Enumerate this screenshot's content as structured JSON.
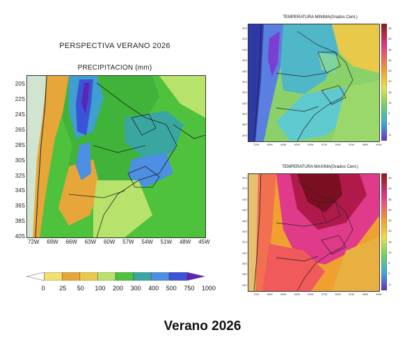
{
  "main_map": {
    "title": "PERSPECTIVA VERANO 2026",
    "subtitle": "PRECIPITACION (mm)",
    "y_labels": [
      "20S",
      "22S",
      "24S",
      "26S",
      "28S",
      "30S",
      "32S",
      "34S",
      "36S",
      "38S",
      "40S"
    ],
    "x_labels": [
      "72W",
      "69W",
      "66W",
      "63W",
      "60W",
      "57W",
      "54W",
      "51W",
      "48W",
      "45W"
    ],
    "colorbar": {
      "labels": [
        "0",
        "25",
        "50",
        "100",
        "200",
        "300",
        "400",
        "500",
        "750",
        "1000"
      ],
      "colors": [
        "#ffffff",
        "#f2e070",
        "#e6a63a",
        "#e8c94a",
        "#b7e36c",
        "#4ec23c",
        "#39a7a0",
        "#4c8fe3",
        "#3b54d6",
        "#5b26b8"
      ]
    }
  },
  "tmin_map": {
    "title": "TEMPERATURA MINIMA(Grados Cent.)",
    "y_labels": [
      "20S",
      "22S",
      "24S",
      "26S",
      "28S",
      "30S",
      "32S",
      "34S",
      "36S",
      "38S",
      "40S"
    ],
    "x_labels": [
      "72W",
      "69W",
      "66W",
      "63W",
      "60W",
      "57W",
      "54W",
      "51W",
      "48W",
      "45W"
    ],
    "colorbar_labels": [
      "45",
      "40",
      "35",
      "30",
      "25",
      "20",
      "15",
      "10",
      "5",
      "0",
      "-5"
    ]
  },
  "tmax_map": {
    "title": "TEMPERATURA MAXIMA(Grados Cent.)",
    "y_labels": [
      "20S",
      "22S",
      "24S",
      "26S",
      "28S",
      "30S",
      "32S",
      "34S",
      "36S",
      "38S",
      "40S"
    ],
    "x_labels": [
      "72W",
      "69W",
      "66W",
      "63W",
      "60W",
      "57W",
      "54W",
      "51W",
      "48W",
      "45W"
    ],
    "colorbar_labels": [
      "45",
      "40",
      "35",
      "30",
      "25",
      "20",
      "15",
      "10",
      "5",
      "0",
      "-5"
    ]
  },
  "footer": {
    "caption": "Verano 2026"
  }
}
